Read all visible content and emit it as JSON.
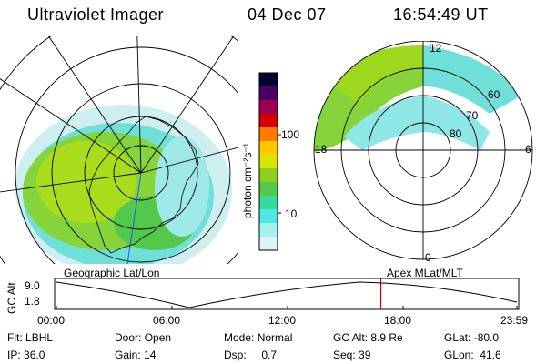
{
  "header": {
    "title": "Ultraviolet Imager",
    "date": "04 Dec 07",
    "time": "16:54:49 UT"
  },
  "colorbar": {
    "label": "photon cm⁻²s⁻¹",
    "ticks": [
      "100",
      "10"
    ],
    "colors": [
      "#000033",
      "#4b0066",
      "#99004d",
      "#d40000",
      "#ff7a00",
      "#ffc800",
      "#d6e600",
      "#8fd11a",
      "#52c94a",
      "#36d9a0",
      "#4fe6e6",
      "#a6f0f0",
      "#dcf5f5"
    ]
  },
  "apex_map": {
    "lat_labels": [
      "60",
      "70",
      "80"
    ],
    "mlt_labels": {
      "top": "12",
      "left": "18",
      "right": "6",
      "bottom": "0"
    }
  },
  "altitude_plot": {
    "left_title": "Geographic Lat/Lon",
    "right_title": "Apex MLat/MLT",
    "axis_label": "GC Alt",
    "y_ticks": [
      "9.0",
      "1.8"
    ],
    "x_ticks": [
      "00:00",
      "06:00",
      "12:00",
      "18:00",
      "23:59"
    ],
    "marker_time_hours": 16.9
  },
  "info": {
    "row1": [
      {
        "label": "Flt:",
        "value": "LBHL"
      },
      {
        "label": "Door:",
        "value": "Open"
      },
      {
        "label": "Mode:",
        "value": "Normal"
      },
      {
        "label": "GC Alt:",
        "value": "8.9 Re"
      },
      {
        "label": "GLat:",
        "value": "-80.0"
      }
    ],
    "row2": [
      {
        "label": "IP:",
        "value": "36.0"
      },
      {
        "label": "Gain:",
        "value": "14"
      },
      {
        "label": "Dsp:",
        "value": "0.7"
      },
      {
        "label": "Seq:",
        "value": "39"
      },
      {
        "label": "GLon:",
        "value": "41.6"
      }
    ]
  }
}
